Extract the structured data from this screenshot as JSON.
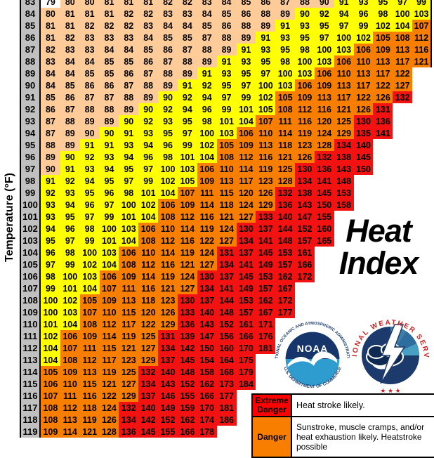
{
  "title_lines": [
    "Heat",
    "Index"
  ],
  "axis": {
    "y_label": "Temperature (°F)"
  },
  "colors": {
    "below": "#FFFFFF",
    "caution": "#FFCC99",
    "extreme_caution": "#FFFF00",
    "danger": "#F87E00",
    "extreme_danger": "#F21212",
    "header_gray": "#C0C0C0",
    "legend_extreme_red": "#FF0000",
    "legend_danger_orange": "#F87E00"
  },
  "chart_data": {
    "type": "heatmap",
    "title": "Heat Index",
    "ylabel": "Temperature (°F)",
    "note_layout": "column headers cropped out of view; 20 value columns max; top row partially cropped",
    "band_thresholds": {
      "caution_min": 80,
      "extreme_caution_min": 90,
      "danger_min": 105,
      "extreme_danger_min": 130
    },
    "rows": [
      {
        "temp": 83,
        "values": [
          79,
          80,
          80,
          81,
          81,
          81,
          82,
          82,
          83,
          84,
          85,
          86,
          87,
          88,
          90,
          91,
          93,
          95,
          97,
          99
        ]
      },
      {
        "temp": 84,
        "values": [
          80,
          81,
          81,
          81,
          82,
          82,
          83,
          83,
          84,
          85,
          86,
          88,
          89,
          90,
          92,
          94,
          96,
          98,
          100,
          103
        ]
      },
      {
        "temp": 85,
        "values": [
          81,
          81,
          82,
          82,
          82,
          83,
          84,
          84,
          85,
          86,
          88,
          89,
          91,
          93,
          95,
          97,
          99,
          102,
          104,
          107
        ]
      },
      {
        "temp": 86,
        "values": [
          81,
          82,
          83,
          83,
          83,
          84,
          85,
          85,
          87,
          88,
          89,
          91,
          93,
          95,
          97,
          100,
          102,
          105,
          108,
          112
        ]
      },
      {
        "temp": 87,
        "values": [
          82,
          83,
          83,
          84,
          84,
          85,
          86,
          87,
          88,
          89,
          91,
          93,
          95,
          98,
          100,
          103,
          106,
          109,
          113,
          116
        ]
      },
      {
        "temp": 88,
        "values": [
          83,
          84,
          84,
          85,
          85,
          86,
          87,
          88,
          89,
          91,
          93,
          95,
          98,
          100,
          103,
          106,
          110,
          113,
          117,
          121
        ]
      },
      {
        "temp": 89,
        "values": [
          84,
          84,
          85,
          85,
          86,
          87,
          88,
          89,
          91,
          93,
          95,
          97,
          100,
          103,
          106,
          110,
          113,
          117,
          122
        ]
      },
      {
        "temp": 90,
        "values": [
          84,
          85,
          86,
          86,
          87,
          88,
          89,
          91,
          92,
          95,
          97,
          100,
          103,
          106,
          109,
          113,
          117,
          122,
          127
        ]
      },
      {
        "temp": 91,
        "values": [
          85,
          86,
          87,
          87,
          88,
          89,
          90,
          92,
          94,
          97,
          99,
          102,
          105,
          109,
          113,
          117,
          122,
          126,
          132
        ]
      },
      {
        "temp": 92,
        "values": [
          86,
          87,
          88,
          88,
          89,
          90,
          92,
          94,
          96,
          99,
          101,
          105,
          108,
          112,
          116,
          121,
          126,
          131
        ]
      },
      {
        "temp": 93,
        "values": [
          87,
          88,
          89,
          89,
          90,
          92,
          93,
          95,
          98,
          101,
          104,
          107,
          111,
          116,
          120,
          125,
          130,
          136
        ]
      },
      {
        "temp": 94,
        "values": [
          87,
          89,
          90,
          90,
          91,
          93,
          95,
          97,
          100,
          103,
          106,
          110,
          114,
          119,
          124,
          129,
          135,
          141
        ]
      },
      {
        "temp": 95,
        "values": [
          88,
          89,
          91,
          91,
          93,
          94,
          96,
          99,
          102,
          105,
          109,
          113,
          118,
          123,
          128,
          134,
          140
        ]
      },
      {
        "temp": 96,
        "values": [
          89,
          90,
          92,
          93,
          94,
          96,
          98,
          101,
          104,
          108,
          112,
          116,
          121,
          126,
          132,
          138,
          145
        ]
      },
      {
        "temp": 97,
        "values": [
          90,
          91,
          93,
          94,
          95,
          97,
          100,
          103,
          106,
          110,
          114,
          119,
          125,
          130,
          136,
          143,
          150
        ]
      },
      {
        "temp": 98,
        "values": [
          91,
          92,
          94,
          95,
          97,
          99,
          102,
          105,
          109,
          113,
          117,
          123,
          128,
          134,
          141,
          148
        ]
      },
      {
        "temp": 99,
        "values": [
          92,
          93,
          95,
          96,
          98,
          101,
          104,
          107,
          111,
          115,
          120,
          126,
          132,
          138,
          145,
          153
        ]
      },
      {
        "temp": 100,
        "values": [
          93,
          94,
          96,
          97,
          100,
          102,
          106,
          109,
          114,
          118,
          124,
          129,
          136,
          143,
          150,
          158
        ]
      },
      {
        "temp": 101,
        "values": [
          93,
          95,
          97,
          99,
          101,
          104,
          108,
          112,
          116,
          121,
          127,
          133,
          140,
          147,
          155
        ]
      },
      {
        "temp": 102,
        "values": [
          94,
          96,
          98,
          100,
          103,
          106,
          110,
          114,
          119,
          124,
          130,
          137,
          144,
          152,
          160
        ]
      },
      {
        "temp": 103,
        "values": [
          95,
          97,
          99,
          101,
          104,
          108,
          112,
          116,
          122,
          127,
          134,
          141,
          148,
          157,
          165
        ]
      },
      {
        "temp": 104,
        "values": [
          96,
          98,
          100,
          103,
          106,
          110,
          114,
          119,
          124,
          131,
          137,
          145,
          153,
          161
        ]
      },
      {
        "temp": 105,
        "values": [
          97,
          99,
          102,
          104,
          108,
          112,
          116,
          121,
          127,
          134,
          141,
          149,
          157,
          166
        ]
      },
      {
        "temp": 106,
        "values": [
          98,
          100,
          103,
          106,
          109,
          114,
          119,
          124,
          130,
          137,
          145,
          153,
          162,
          172
        ]
      },
      {
        "temp": 107,
        "values": [
          99,
          101,
          104,
          107,
          111,
          116,
          121,
          127,
          134,
          141,
          149,
          157,
          167
        ]
      },
      {
        "temp": 108,
        "values": [
          100,
          102,
          105,
          109,
          113,
          118,
          123,
          130,
          137,
          144,
          153,
          162,
          172
        ]
      },
      {
        "temp": 109,
        "values": [
          100,
          103,
          107,
          110,
          115,
          120,
          126,
          133,
          140,
          148,
          157,
          167,
          177
        ]
      },
      {
        "temp": 110,
        "values": [
          101,
          104,
          108,
          112,
          117,
          122,
          129,
          136,
          143,
          152,
          161,
          171
        ]
      },
      {
        "temp": 111,
        "values": [
          102,
          106,
          109,
          114,
          119,
          125,
          131,
          139,
          147,
          156,
          166,
          176
        ]
      },
      {
        "temp": 112,
        "values": [
          104,
          107,
          111,
          115,
          121,
          127,
          134,
          142,
          150,
          160,
          170,
          181
        ]
      },
      {
        "temp": 113,
        "values": [
          104,
          108,
          112,
          117,
          123,
          129,
          137,
          145,
          154,
          164,
          175
        ]
      },
      {
        "temp": 114,
        "values": [
          105,
          109,
          113,
          119,
          125,
          132,
          140,
          148,
          158,
          168,
          179
        ]
      },
      {
        "temp": 115,
        "values": [
          106,
          110,
          115,
          121,
          127,
          134,
          143,
          152,
          162,
          173,
          184
        ]
      },
      {
        "temp": 116,
        "values": [
          107,
          111,
          116,
          122,
          129,
          137,
          146,
          155,
          166,
          177
        ]
      },
      {
        "temp": 117,
        "values": [
          108,
          112,
          118,
          124,
          132,
          140,
          149,
          159,
          170,
          181
        ]
      },
      {
        "temp": 118,
        "values": [
          108,
          113,
          119,
          126,
          134,
          142,
          152,
          162,
          174,
          186
        ]
      },
      {
        "temp": 119,
        "values": [
          109,
          114,
          121,
          128,
          136,
          145,
          155,
          166,
          178
        ]
      }
    ],
    "color_overrides": [
      {
        "temp": 83,
        "col": 15,
        "band": "caution"
      },
      {
        "temp": 94,
        "col": 3,
        "band": "caution"
      },
      {
        "temp": 97,
        "col": 1,
        "band": "caution"
      },
      {
        "temp": 92,
        "col": 12,
        "band": "extreme_caution"
      },
      {
        "temp": 98,
        "col": 8,
        "band": "extreme_caution"
      }
    ]
  },
  "legend": {
    "rows": [
      {
        "label": "Extreme Danger",
        "description": "Heat stroke likely."
      },
      {
        "label": "Danger",
        "description": "Sunstroke, muscle cramps, and/or heat exhaustion likely.  Heatstroke possible"
      }
    ]
  },
  "logos": {
    "noaa": {
      "label": "NOAA",
      "arc_top": "NATIONAL OCEANIC AND ATMOSPHERIC ADMINISTRATION",
      "arc_bottom": "U.S. DEPARTMENT OF COMMERCE"
    },
    "nws": {
      "arc": "NATIONAL WEATHER SERVICE",
      "stars": "★ ★ ★"
    }
  }
}
